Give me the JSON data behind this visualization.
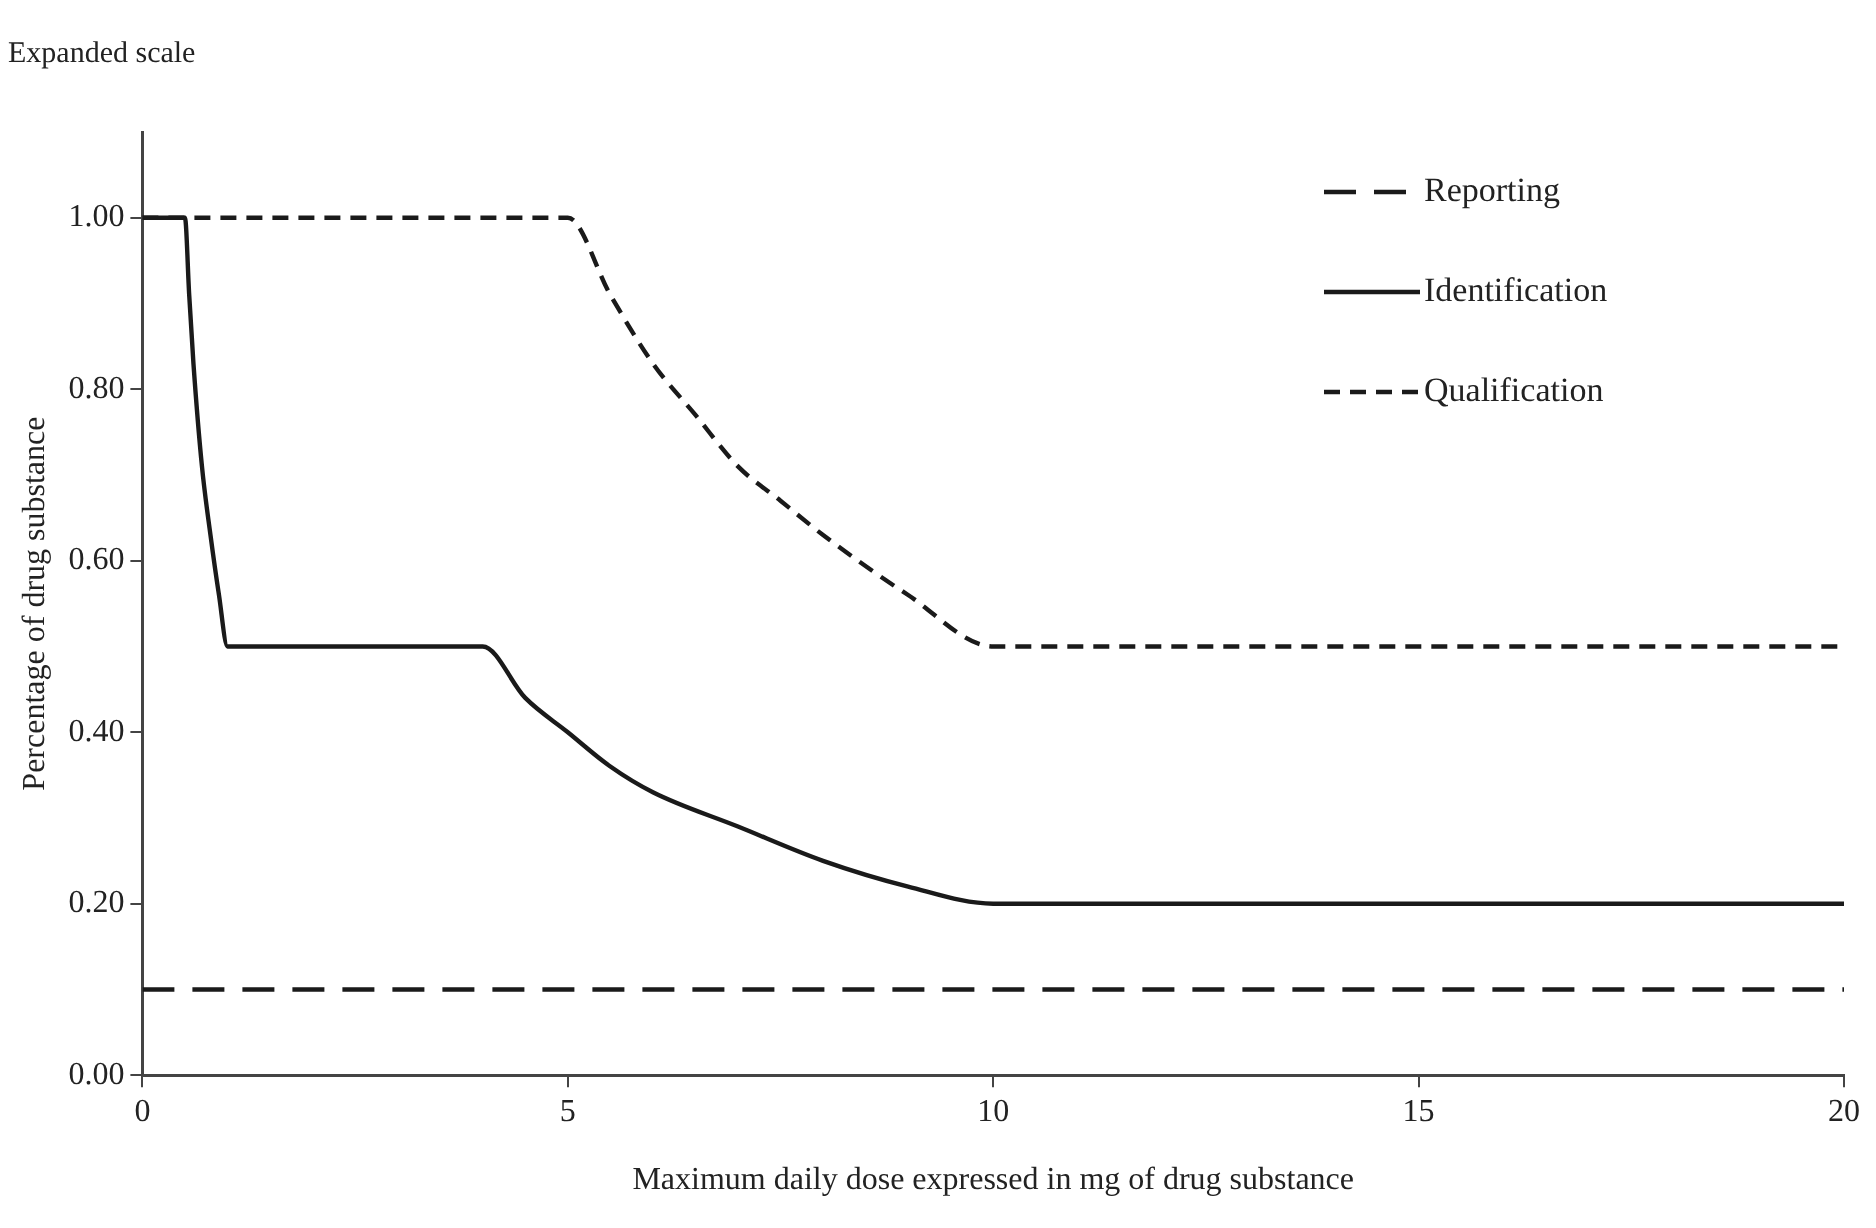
{
  "chart_data": {
    "type": "line",
    "title": "Expanded scale",
    "xlabel": "Maximum daily dose expressed in mg of drug substance",
    "ylabel": "Percentage of drug substance",
    "xlim": [
      0,
      20
    ],
    "xticks": [
      0,
      5,
      10,
      15,
      20
    ],
    "ylim": [
      0,
      1.1
    ],
    "yticks": [
      {
        "value": 0,
        "label": "0.00"
      },
      {
        "value": 0.2,
        "label": "0.20"
      },
      {
        "value": 0.4,
        "label": "0.40"
      },
      {
        "value": 0.6,
        "label": "0.60"
      },
      {
        "value": 0.8,
        "label": "0.80"
      },
      {
        "value": 1,
        "label": "1.00"
      }
    ],
    "grid": false,
    "legend": "top right",
    "marker": "none",
    "series": [
      {
        "name": "Reporting",
        "color": "#1a1a1a",
        "line_style": "dashed",
        "x": [
          0,
          20
        ],
        "values": [
          0.1,
          0.1
        ]
      },
      {
        "name": "Identification",
        "color": "#1a1a1a",
        "line_style": "solid",
        "x": [
          0,
          0.5,
          0.55,
          0.6,
          0.7,
          0.8,
          0.9,
          1,
          4,
          4.5,
          5,
          5.5,
          6,
          7,
          8,
          9,
          10,
          20
        ],
        "values": [
          1,
          1,
          0.91,
          0.83,
          0.71,
          0.63,
          0.56,
          0.5,
          0.5,
          0.44,
          0.4,
          0.36,
          0.33,
          0.29,
          0.25,
          0.22,
          0.2,
          0.2
        ]
      },
      {
        "name": "Qualification",
        "color": "#1a1a1a",
        "line_style": "dotted",
        "x": [
          0,
          5,
          5.5,
          6,
          6.5,
          7,
          7.5,
          8,
          9,
          10,
          20
        ],
        "values": [
          1,
          1,
          0.91,
          0.83,
          0.77,
          0.71,
          0.67,
          0.63,
          0.56,
          0.5,
          0.5
        ]
      }
    ]
  }
}
